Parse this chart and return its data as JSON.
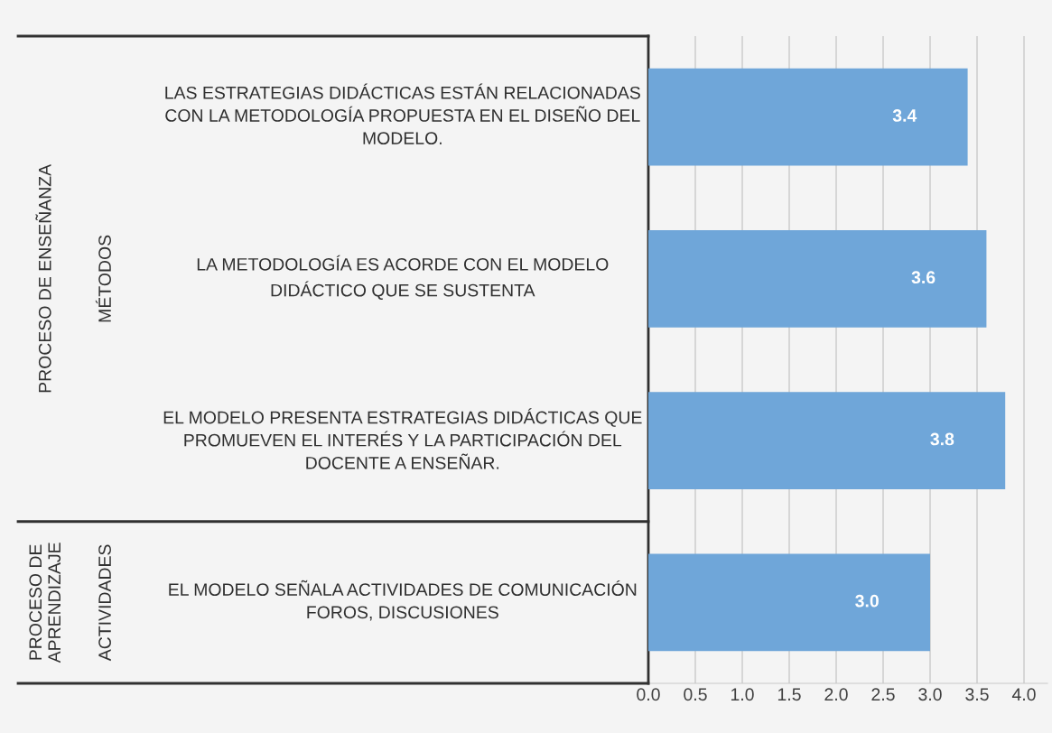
{
  "chart_data": {
    "type": "bar",
    "orientation": "horizontal",
    "categories": [
      "LAS ESTRATEGIAS DIDÁCTICAS ESTÁN RELACIONADAS\nCON LA METODOLOGÍA PROPUESTA EN EL DISEÑO DEL\nMODELO.",
      "LA METODOLOGÍA ES ACORDE CON EL MODELO\nDIDÁCTICO QUE SE SUSTENTA",
      "EL MODELO PRESENTA ESTRATEGIAS DIDÁCTICAS QUE\nPROMUEVEN EL INTERÉS Y LA PARTICIPACIÓN DEL\nDOCENTE A ENSEÑAR.",
      "EL MODELO SEÑALA ACTIVIDADES DE COMUNICACIÓN\nFOROS, DISCUSIONES"
    ],
    "values": [
      3.4,
      3.6,
      3.8,
      3.0
    ],
    "value_labels": [
      "3.4",
      "3.6",
      "3.8",
      "3.0"
    ],
    "color": "#6fa6d9",
    "xlim": [
      0,
      4.25
    ],
    "xticks": [
      {
        "value": 0,
        "label": "0.0"
      },
      {
        "value": 0.5,
        "label": "0.5"
      },
      {
        "value": 1,
        "label": "1.0"
      },
      {
        "value": 1.5,
        "label": "1.5"
      },
      {
        "value": 2,
        "label": "2.0"
      },
      {
        "value": 2.5,
        "label": "2.5"
      },
      {
        "value": 3,
        "label": "3.0"
      },
      {
        "value": 3.5,
        "label": "3.5"
      },
      {
        "value": 4,
        "label": "4.0"
      }
    ],
    "grid": "x",
    "annotations": [
      "PROCESO DE ENSEÑANZA",
      "MÉTODOS",
      "PROCESO DE\nAPRENDIZAJE",
      "ACTIVIDADES"
    ]
  }
}
